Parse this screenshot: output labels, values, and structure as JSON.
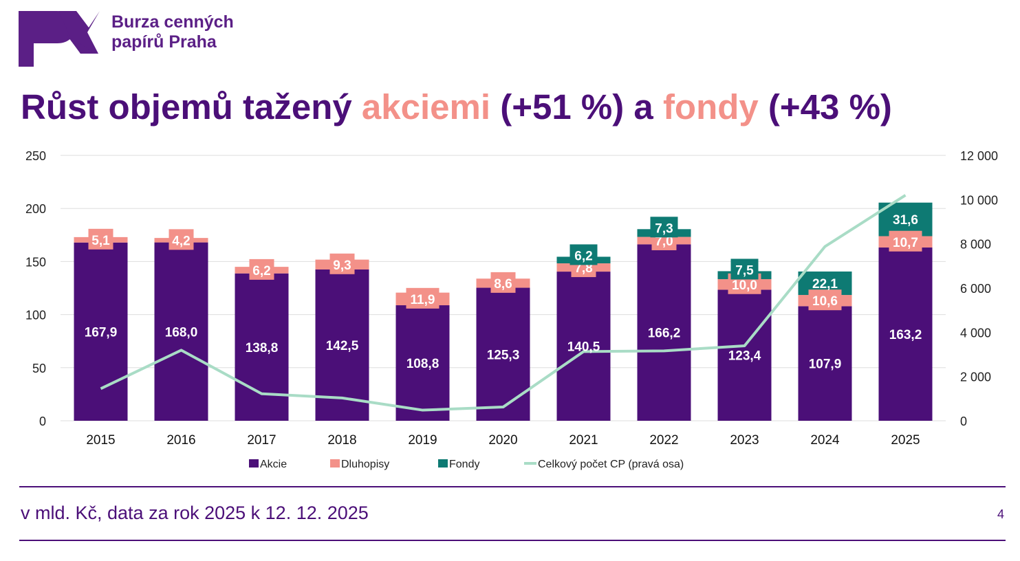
{
  "logo": {
    "line1": "Burza cenných",
    "line2": "papírů Praha"
  },
  "title": {
    "part1": "Růst objemů tažený ",
    "accent1": "akciemi",
    "part2": " (+51 %) a ",
    "accent2": "fondy",
    "part3": " (+43 %)"
  },
  "footer": {
    "note": "v mld. Kč, data za rok 2025 k 12. 12. 2025",
    "page": "4"
  },
  "colors": {
    "akcie": "#4b0f78",
    "dluhopisy": "#f39189",
    "fondy": "#0e7a73",
    "line": "#a9dcc6",
    "text": "#4b0f78",
    "grid": "#dddddd"
  },
  "chart_data": {
    "type": "bar",
    "stacked": true,
    "categories": [
      "2015",
      "2016",
      "2017",
      "2018",
      "2019",
      "2020",
      "2021",
      "2022",
      "2023",
      "2024",
      "2025"
    ],
    "series": [
      {
        "name": "Akcie",
        "values": [
          167.9,
          168.0,
          138.8,
          142.5,
          108.8,
          125.3,
          140.5,
          166.2,
          123.4,
          107.9,
          163.2
        ],
        "labels": [
          "167,9",
          "168,0",
          "138,8",
          "142,5",
          "108,8",
          "125,3",
          "140,5",
          "166,2",
          "123,4",
          "107,9",
          "163,2"
        ]
      },
      {
        "name": "Dluhopisy",
        "values": [
          5.1,
          4.2,
          6.2,
          9.3,
          11.9,
          8.6,
          7.8,
          7.0,
          10.0,
          10.6,
          10.7
        ],
        "labels": [
          "5,1",
          "4,2",
          "6,2",
          "9,3",
          "11,9",
          "8,6",
          "7,8",
          "7,0",
          "10,0",
          "10,6",
          "10,7"
        ]
      },
      {
        "name": "Fondy",
        "values": [
          0,
          0,
          0,
          0,
          0,
          0,
          6.2,
          7.3,
          7.5,
          22.1,
          31.6
        ],
        "labels": [
          "",
          "",
          "",
          "",
          "",
          "",
          "6,2",
          "7,3",
          "7,5",
          "22,1",
          "31,6"
        ]
      }
    ],
    "line_series": {
      "name": "Celkový počet CP (pravá osa)",
      "axis": "right",
      "values": [
        1450,
        3190,
        1220,
        1030,
        480,
        620,
        3130,
        3160,
        3390,
        7880,
        10200
      ]
    },
    "y_left": {
      "min": 0,
      "max": 250,
      "ticks": [
        0,
        50,
        100,
        150,
        200,
        250
      ],
      "tick_labels": [
        "0",
        "50",
        "100",
        "150",
        "200",
        "250"
      ]
    },
    "y_right": {
      "min": 0,
      "max": 12000,
      "ticks": [
        0,
        2000,
        4000,
        6000,
        8000,
        10000,
        12000
      ],
      "tick_labels": [
        "0",
        "2 000",
        "4 000",
        "6 000",
        "8 000",
        "10 000",
        "12 000"
      ]
    },
    "legend": {
      "position": "bottom",
      "items": [
        "Akcie",
        "Dluhopisy",
        "Fondy",
        "Celkový počet CP (pravá osa)"
      ]
    },
    "grid": true
  }
}
